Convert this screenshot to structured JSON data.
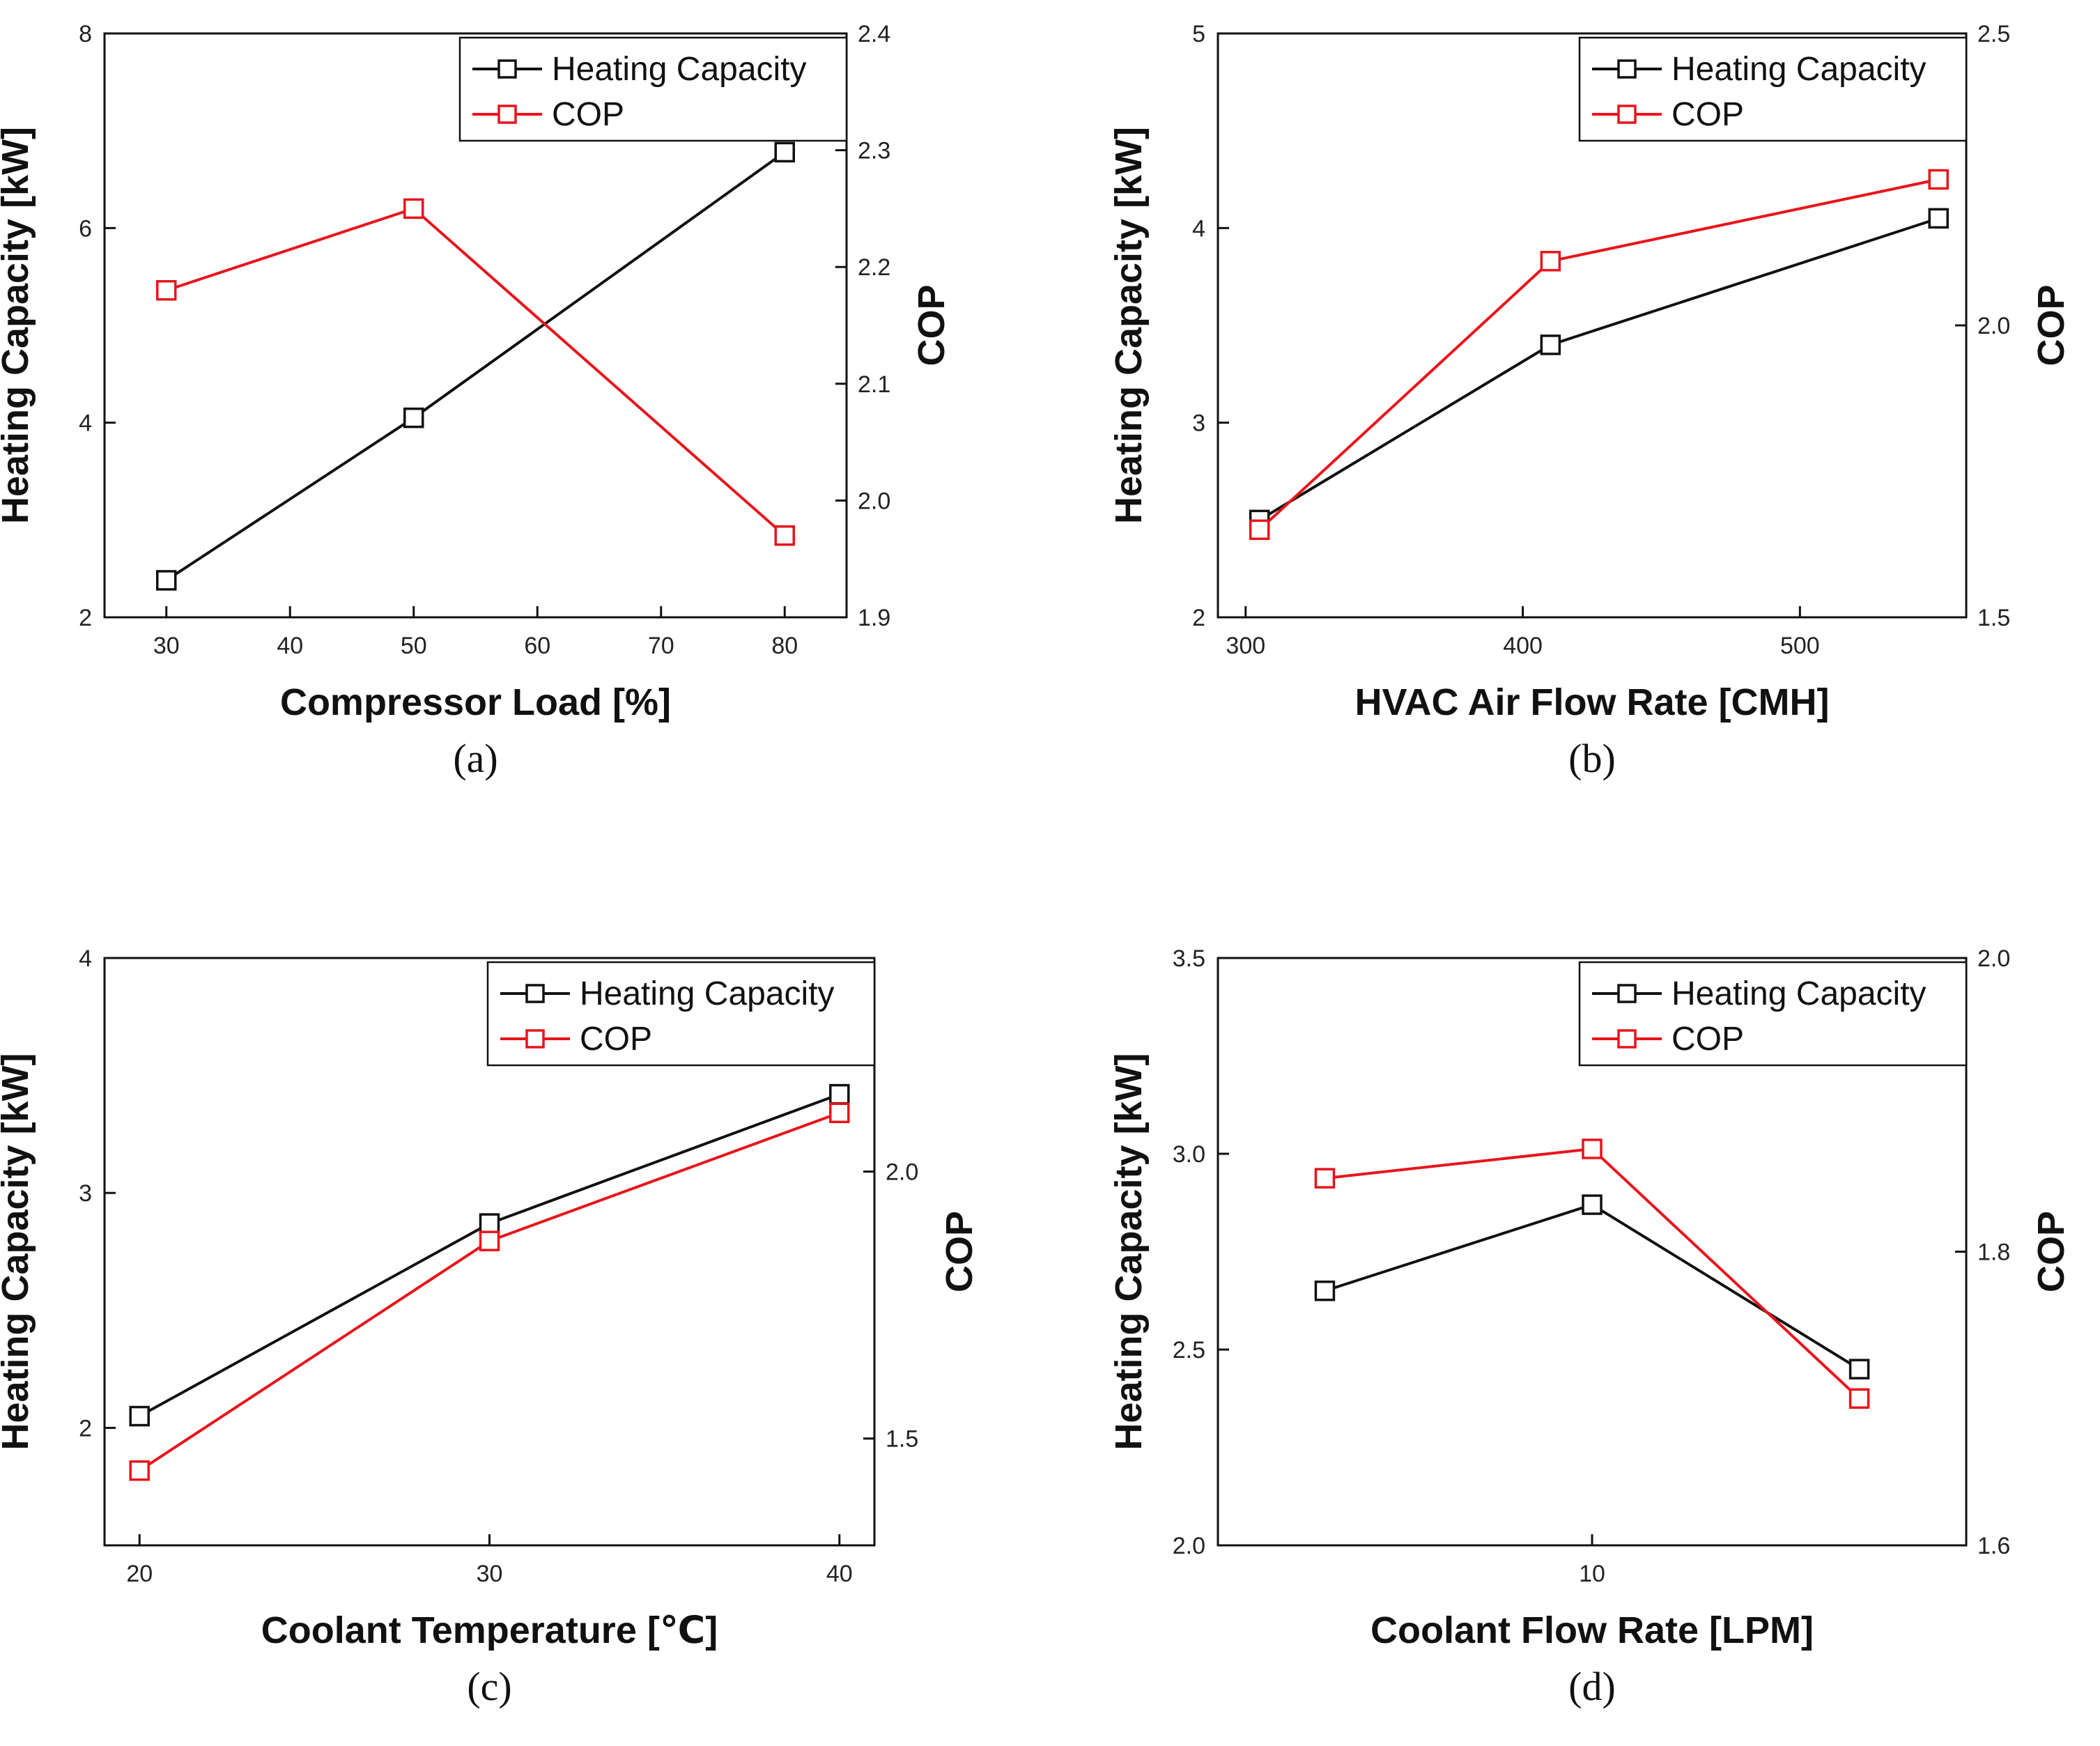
{
  "colors": {
    "heating": "#111111",
    "cop": "#e8141c",
    "axis": "#111111"
  },
  "chart_data": [
    {
      "type": "line",
      "caption": "(a)",
      "xlabel": "Compressor Load [%]",
      "ylabel": "Heating Capacity [kW]",
      "y2label": "COP",
      "xlim": [
        25,
        85
      ],
      "ylim": [
        2,
        8
      ],
      "y2lim": [
        1.9,
        2.4
      ],
      "xticks": [
        30,
        40,
        50,
        60,
        70,
        80
      ],
      "yticks": [
        2,
        4,
        6,
        8
      ],
      "y2ticks": [
        1.9,
        2.0,
        2.1,
        2.2,
        2.3,
        2.4
      ],
      "xtick_labels": [
        "30",
        "40",
        "50",
        "60",
        "70",
        "80"
      ],
      "ytick_labels": [
        "2",
        "4",
        "6",
        "8"
      ],
      "y2tick_labels": [
        "1.9",
        "2.0",
        "2.1",
        "2.2",
        "2.3",
        "2.4"
      ],
      "legend": "top-right",
      "series": [
        {
          "name": "Heating Capacity",
          "axis": "left",
          "x": [
            30,
            50,
            80
          ],
          "values": [
            2.38,
            4.05,
            6.78
          ]
        },
        {
          "name": "COP",
          "axis": "right",
          "x": [
            30,
            50,
            80
          ],
          "values": [
            2.18,
            2.25,
            1.97
          ]
        }
      ]
    },
    {
      "type": "line",
      "caption": "(b)",
      "xlabel": "HVAC Air Flow Rate [CMH]",
      "ylabel": "Heating Capacity [kW]",
      "y2label": "COP",
      "xlim": [
        290,
        560
      ],
      "ylim": [
        2,
        5
      ],
      "y2lim": [
        1.5,
        2.5
      ],
      "xticks": [
        300,
        400,
        500
      ],
      "yticks": [
        2,
        3,
        4,
        5
      ],
      "y2ticks": [
        1.5,
        2.0,
        2.5
      ],
      "xtick_labels": [
        "300",
        "400",
        "500"
      ],
      "ytick_labels": [
        "2",
        "3",
        "4",
        "5"
      ],
      "y2tick_labels": [
        "1.5",
        "2.0",
        "2.5"
      ],
      "legend": "top-right",
      "series": [
        {
          "name": "Heating Capacity",
          "axis": "left",
          "x": [
            305,
            410,
            550
          ],
          "values": [
            2.5,
            3.4,
            4.05
          ]
        },
        {
          "name": "COP",
          "axis": "right",
          "x": [
            305,
            410,
            550
          ],
          "values": [
            1.65,
            2.11,
            2.25
          ]
        }
      ]
    },
    {
      "type": "line",
      "caption": "(c)",
      "xlabel": "Coolant Temperature [℃]",
      "ylabel": "Heating Capacity [kW]",
      "y2label": "COP",
      "xlim": [
        19,
        41
      ],
      "ylim": [
        1.5,
        4
      ],
      "y2lim": [
        1.3,
        2.4
      ],
      "xticks": [
        20,
        30,
        40
      ],
      "yticks": [
        2,
        3,
        4
      ],
      "y2ticks": [
        1.5,
        2.0
      ],
      "xtick_labels": [
        "20",
        "30",
        "40"
      ],
      "ytick_labels": [
        "2",
        "3",
        "4"
      ],
      "y2tick_labels": [
        "1.5",
        "2.0"
      ],
      "legend": "top-right",
      "series": [
        {
          "name": "Heating Capacity",
          "axis": "left",
          "x": [
            20,
            30,
            40
          ],
          "values": [
            2.05,
            2.87,
            3.42
          ]
        },
        {
          "name": "COP",
          "axis": "right",
          "x": [
            20,
            30,
            40
          ],
          "values": [
            1.44,
            1.87,
            2.11
          ]
        }
      ]
    },
    {
      "type": "line",
      "caption": "(d)",
      "xlabel": "Coolant Flow Rate [LPM]",
      "ylabel": "Heating Capacity [kW]",
      "y2label": "COP",
      "xlim": [
        3,
        17
      ],
      "ylim": [
        2.0,
        3.5
      ],
      "y2lim": [
        1.6,
        2.0
      ],
      "xticks": [
        10
      ],
      "yticks": [
        2.0,
        2.5,
        3.0,
        3.5
      ],
      "y2ticks": [
        1.6,
        1.8,
        2.0
      ],
      "xtick_labels": [
        "10"
      ],
      "ytick_labels": [
        "2.0",
        "2.5",
        "3.0",
        "3.5"
      ],
      "y2tick_labels": [
        "1.6",
        "1.8",
        "2.0"
      ],
      "legend": "top-right",
      "series": [
        {
          "name": "Heating Capacity",
          "axis": "left",
          "x": [
            5,
            10,
            15
          ],
          "values": [
            2.65,
            2.87,
            2.45
          ]
        },
        {
          "name": "COP",
          "axis": "right",
          "x": [
            5,
            10,
            15
          ],
          "values": [
            1.85,
            1.87,
            1.7
          ]
        }
      ]
    }
  ]
}
